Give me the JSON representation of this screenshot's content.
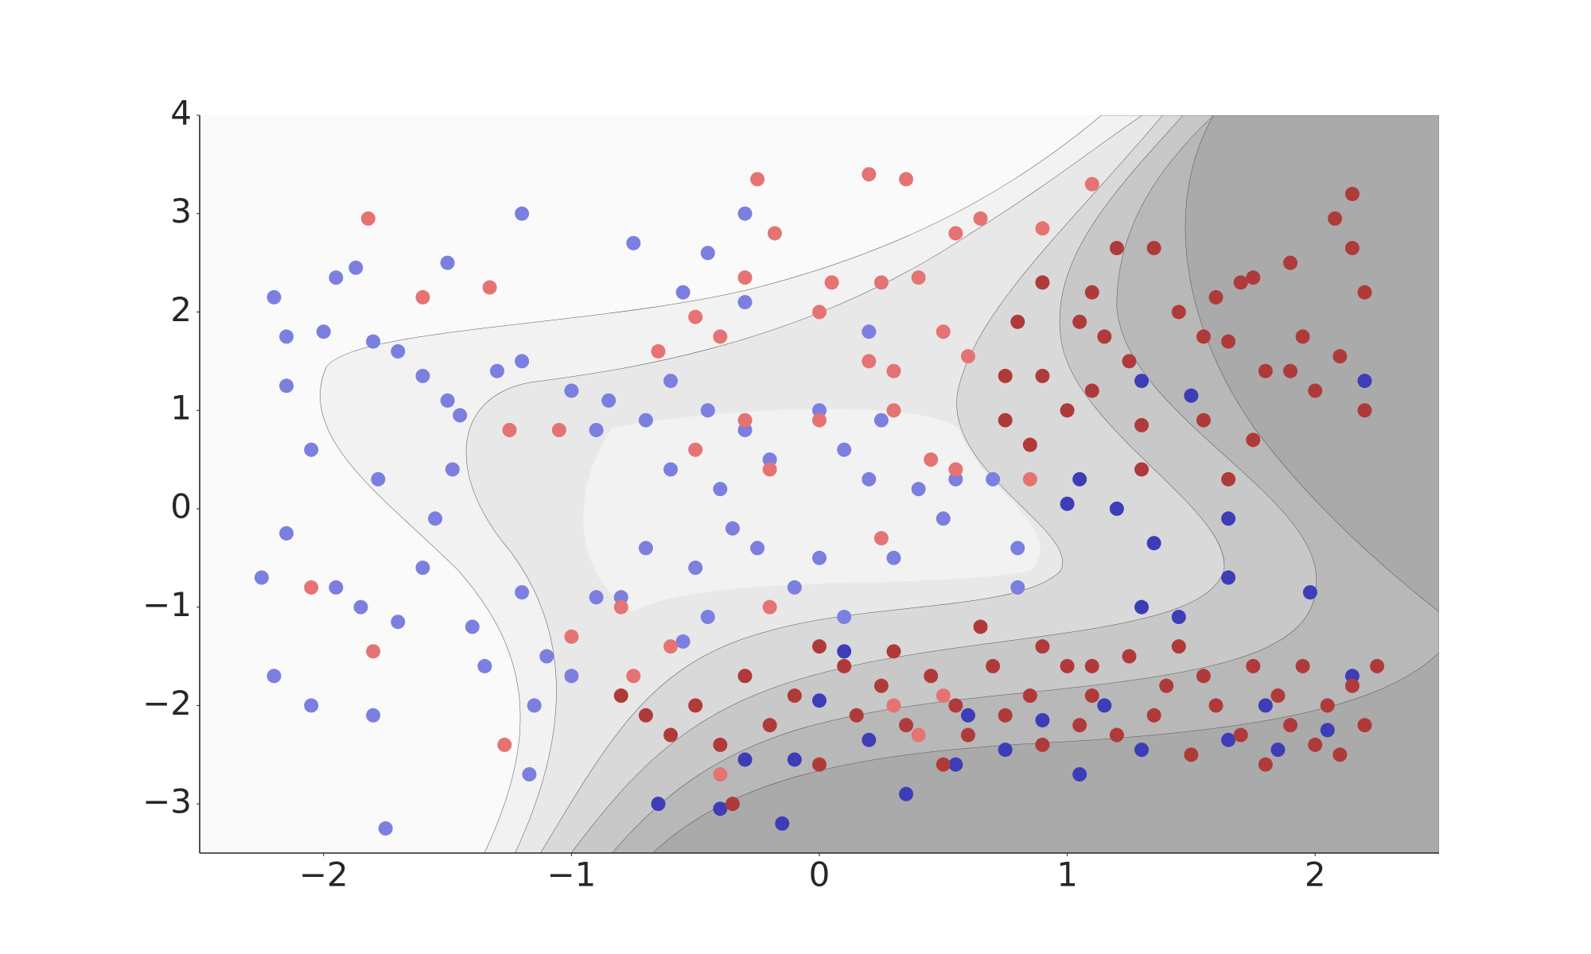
{
  "chart_data": {
    "type": "scatter",
    "xlim": [
      -2.5,
      2.5
    ],
    "ylim": [
      -3.5,
      4
    ],
    "xticks": [
      {
        "value": -2,
        "label": "−2"
      },
      {
        "value": -1,
        "label": "−1"
      },
      0,
      1,
      2
    ],
    "yticks": [
      {
        "value": -3,
        "label": "−3"
      },
      {
        "value": -2,
        "label": "−2"
      },
      {
        "value": -1,
        "label": "−1"
      },
      0,
      1,
      2,
      3,
      4
    ],
    "grid": false,
    "series": [
      {
        "color": "#7b7fe0",
        "x": [
          -2.2,
          -1.95,
          -1.87,
          -2.15,
          -2.0,
          -1.8,
          -1.7,
          -2.15,
          -1.6,
          -1.5,
          -1.45,
          -1.3,
          -1.2,
          -1.78,
          -2.05,
          -2.15,
          -2.25,
          -1.95,
          -1.85,
          -1.7,
          -1.6,
          -1.55,
          -1.48,
          -1.4,
          -1.35,
          -1.2,
          -1.1,
          -1.15,
          -1.17,
          -1.75,
          -2.2,
          -2.05,
          -1.8,
          -1.0,
          -0.9,
          -1.0,
          -0.85,
          -0.9,
          -0.7,
          -0.6,
          -0.45,
          -0.3,
          -0.6,
          -0.4,
          -0.2,
          0.1,
          0.2,
          0.4,
          0.5,
          0.3,
          0.0,
          -0.25,
          -0.5,
          -0.7,
          -0.8,
          -0.45,
          -0.55,
          -0.3,
          -0.55,
          -0.75,
          -0.45,
          -1.2,
          -1.5,
          -0.3,
          0.2,
          0.0,
          0.25,
          0.55,
          0.7,
          0.8,
          0.8,
          -0.1,
          0.1,
          -0.35
        ],
        "y": [
          2.15,
          2.35,
          2.45,
          1.75,
          1.8,
          1.7,
          1.6,
          1.25,
          1.35,
          1.1,
          0.95,
          1.4,
          1.5,
          0.3,
          0.6,
          -0.25,
          -0.7,
          -0.8,
          -1.0,
          -1.15,
          -0.6,
          -0.1,
          0.4,
          -1.2,
          -1.6,
          -0.85,
          -1.5,
          -2.0,
          -2.7,
          -3.25,
          -1.7,
          -2.0,
          -2.1,
          -1.7,
          -0.9,
          1.2,
          1.1,
          0.8,
          0.9,
          1.3,
          1.0,
          0.8,
          0.4,
          0.2,
          0.5,
          0.6,
          0.3,
          0.2,
          -0.1,
          -0.5,
          -0.5,
          -0.4,
          -0.6,
          -0.4,
          -0.9,
          -1.1,
          -1.35,
          2.1,
          2.2,
          2.7,
          2.6,
          3.0,
          2.5,
          3.0,
          1.8,
          1.0,
          0.9,
          0.3,
          0.3,
          -0.4,
          -0.8,
          -0.8,
          -1.1,
          -0.2
        ]
      },
      {
        "color": "#3d3db8",
        "x": [
          2.2,
          1.5,
          1.3,
          1.05,
          1.0,
          1.2,
          1.35,
          1.65,
          1.65,
          1.98,
          1.8,
          1.85,
          2.05,
          1.05,
          0.55,
          0.35,
          -0.15,
          -0.4,
          -0.65,
          -0.1,
          -0.3,
          0.0,
          0.2,
          0.6,
          0.9,
          1.15,
          1.3,
          1.65,
          2.15,
          0.75,
          0.1,
          1.3,
          1.45
        ],
        "y": [
          1.3,
          1.15,
          1.3,
          0.3,
          0.05,
          0.0,
          -0.35,
          -0.7,
          -0.1,
          -0.85,
          -2.0,
          -2.45,
          -2.25,
          -2.7,
          -2.6,
          -2.9,
          -3.2,
          -3.05,
          -3.0,
          -2.55,
          -2.55,
          -1.95,
          -2.35,
          -2.1,
          -2.15,
          -2.0,
          -2.45,
          -2.35,
          -1.7,
          -2.45,
          -1.45,
          -1.0,
          -1.1
        ]
      },
      {
        "color": "#e57373",
        "x": [
          -1.82,
          -1.6,
          -1.33,
          -2.05,
          -1.8,
          -1.27,
          -1.0,
          -0.25,
          -0.18,
          0.2,
          0.35,
          0.65,
          0.9,
          0.55,
          1.1,
          -0.3,
          0.05,
          0.25,
          0.4,
          -0.4,
          -0.5,
          -0.65,
          0.0,
          0.2,
          0.3,
          0.5,
          0.6,
          0.3,
          0.45,
          0.55,
          0.0,
          -0.5,
          -0.2,
          -0.3,
          -1.25,
          -1.05,
          -0.8,
          -0.2,
          0.25,
          0.85,
          0.4,
          0.3,
          0.5,
          -0.4,
          -0.6,
          -0.75
        ],
        "y": [
          2.95,
          2.15,
          2.25,
          -0.8,
          -1.45,
          -2.4,
          -1.3,
          3.35,
          2.8,
          3.4,
          3.35,
          2.95,
          2.85,
          2.8,
          3.3,
          2.35,
          2.3,
          2.3,
          2.35,
          1.75,
          1.95,
          1.6,
          2.0,
          1.5,
          1.4,
          1.8,
          1.55,
          1.0,
          0.5,
          0.4,
          0.9,
          0.6,
          0.4,
          0.9,
          0.8,
          0.8,
          -1.0,
          -1.0,
          -0.3,
          0.3,
          -2.3,
          -2.0,
          -1.9,
          -2.7,
          -1.4,
          -1.7
        ]
      },
      {
        "color": "#b03a3a",
        "x": [
          2.15,
          2.08,
          2.15,
          2.2,
          2.1,
          1.95,
          1.8,
          1.65,
          1.55,
          1.45,
          1.75,
          1.7,
          1.6,
          1.9,
          1.35,
          1.2,
          1.1,
          1.15,
          1.25,
          1.1,
          1.3,
          1.3,
          1.55,
          1.75,
          1.65,
          0.9,
          0.9,
          1.05,
          0.8,
          0.75,
          0.75,
          0.85,
          1.0,
          2.2,
          2.0,
          1.9,
          -0.8,
          -0.7,
          -0.6,
          -0.5,
          -0.4,
          -0.3,
          -0.2,
          -0.1,
          0.0,
          0.1,
          0.15,
          0.25,
          0.35,
          0.45,
          0.55,
          0.6,
          0.7,
          0.75,
          0.85,
          0.9,
          1.0,
          1.05,
          1.1,
          1.2,
          1.25,
          1.35,
          1.4,
          1.5,
          1.55,
          1.6,
          1.7,
          1.75,
          1.85,
          1.9,
          1.95,
          2.0,
          2.05,
          2.1,
          2.15,
          2.2,
          2.25,
          1.45,
          1.8,
          0.5,
          -0.35,
          0.0,
          0.3,
          0.65,
          0.9,
          1.1
        ],
        "y": [
          3.2,
          2.95,
          2.65,
          2.2,
          1.55,
          1.75,
          1.4,
          1.7,
          1.75,
          2.0,
          2.35,
          2.3,
          2.15,
          2.5,
          2.65,
          2.65,
          2.2,
          1.75,
          1.5,
          1.2,
          0.85,
          0.4,
          0.9,
          0.7,
          0.3,
          1.35,
          2.3,
          1.9,
          1.9,
          1.35,
          0.9,
          0.65,
          1.0,
          1.0,
          1.2,
          1.4,
          -1.9,
          -2.1,
          -2.3,
          -2.0,
          -2.4,
          -1.7,
          -2.2,
          -1.9,
          -2.6,
          -1.6,
          -2.1,
          -1.8,
          -2.2,
          -1.7,
          -2.0,
          -2.3,
          -1.6,
          -2.1,
          -1.9,
          -2.4,
          -1.6,
          -2.2,
          -1.9,
          -2.3,
          -1.5,
          -2.1,
          -1.8,
          -2.5,
          -1.7,
          -2.0,
          -2.3,
          -1.6,
          -1.9,
          -2.2,
          -1.6,
          -2.4,
          -2.0,
          -2.5,
          -1.8,
          -2.2,
          -1.6,
          -1.4,
          -2.6,
          -2.6,
          -3.0,
          -1.4,
          -1.45,
          -1.2,
          -1.4,
          -1.6
        ]
      }
    ]
  }
}
